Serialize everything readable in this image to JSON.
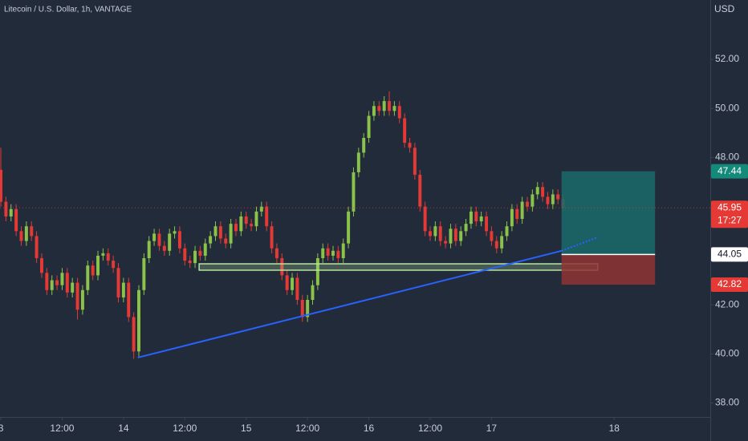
{
  "chart_data": {
    "type": "candlestick",
    "title": "Litecoin / U.S. Dollar, 1h, VANTAGE",
    "y_axis_label": "USD",
    "x": [
      0,
      1,
      2,
      3,
      4,
      5,
      6,
      7,
      8,
      9,
      10,
      11,
      12,
      13,
      14,
      15,
      16,
      17,
      18,
      19,
      20,
      21,
      22,
      23,
      24,
      25,
      26,
      27,
      28,
      29,
      30,
      31,
      32,
      33,
      34,
      35,
      36,
      37,
      38,
      39,
      40,
      41,
      42,
      43,
      44,
      45,
      46,
      47,
      48,
      49,
      50,
      51,
      52,
      53,
      54,
      55,
      56,
      57,
      58,
      59,
      60,
      61,
      62,
      63,
      64,
      65,
      66,
      67,
      68,
      69,
      70,
      71,
      72,
      73,
      74,
      75,
      76,
      77,
      78,
      79,
      80,
      81,
      82,
      83,
      84,
      85,
      86,
      87,
      88,
      89,
      90,
      91,
      92,
      93,
      94,
      95,
      96,
      97,
      98,
      99,
      100,
      101,
      102,
      103,
      104,
      105,
      106,
      107,
      108,
      109,
      110
    ],
    "open": [
      47.5,
      46.2,
      45.6,
      45.9,
      45.0,
      44.6,
      45.2,
      44.8,
      43.9,
      43.3,
      42.6,
      43.0,
      42.8,
      43.3,
      42.5,
      42.9,
      41.8,
      42.6,
      43.6,
      43.2,
      44.0,
      44.1,
      43.8,
      43.5,
      42.3,
      42.9,
      41.5,
      40.1,
      42.6,
      43.9,
      44.6,
      44.9,
      44.4,
      44.2,
      44.9,
      45.0,
      44.3,
      43.8,
      43.7,
      44.2,
      44.0,
      44.5,
      44.8,
      45.2,
      44.7,
      44.5,
      45.3,
      45.0,
      45.6,
      45.3,
      45.2,
      45.8,
      46.0,
      45.2,
      44.3,
      43.9,
      43.2,
      42.6,
      43.1,
      42.2,
      41.5,
      42.2,
      42.8,
      43.9,
      44.3,
      44.0,
      44.2,
      43.9,
      44.5,
      45.8,
      47.4,
      48.2,
      48.8,
      49.7,
      50.1,
      49.9,
      50.3,
      49.9,
      50.1,
      49.6,
      48.6,
      48.4,
      47.3,
      46.0,
      45.0,
      44.8,
      45.2,
      44.6,
      44.5,
      45.1,
      44.6,
      45.0,
      45.3,
      45.8,
      45.4,
      45.6,
      45.0,
      44.6,
      44.3,
      44.8,
      45.2,
      45.9,
      45.5,
      46.2,
      46.0,
      46.5,
      46.8,
      46.4,
      46.1,
      46.5,
      46.3
    ],
    "high": [
      48.4,
      46.4,
      46.1,
      46.1,
      45.2,
      45.4,
      45.4,
      45.0,
      44.1,
      43.5,
      43.2,
      43.2,
      43.5,
      43.5,
      43.1,
      43.1,
      42.8,
      43.8,
      43.8,
      44.2,
      44.3,
      44.3,
      44.0,
      43.7,
      43.1,
      43.1,
      41.7,
      42.8,
      44.1,
      44.8,
      45.1,
      45.1,
      44.6,
      45.1,
      45.2,
      45.2,
      44.5,
      44.0,
      44.4,
      44.4,
      44.7,
      45.0,
      45.4,
      45.4,
      44.9,
      45.5,
      45.5,
      45.8,
      45.8,
      45.5,
      46.0,
      46.2,
      46.2,
      45.4,
      44.5,
      44.1,
      43.4,
      43.3,
      43.3,
      42.4,
      42.4,
      43.0,
      44.1,
      44.5,
      44.5,
      44.4,
      44.4,
      44.7,
      46.0,
      47.6,
      48.4,
      49.0,
      49.9,
      50.3,
      50.3,
      50.5,
      50.7,
      50.3,
      50.3,
      49.8,
      48.8,
      48.6,
      47.5,
      46.2,
      45.2,
      45.4,
      45.4,
      44.8,
      45.3,
      45.3,
      45.2,
      45.5,
      46.0,
      46.0,
      45.8,
      45.8,
      45.2,
      44.8,
      45.0,
      45.4,
      46.1,
      46.1,
      46.4,
      46.4,
      46.7,
      47.0,
      47.0,
      46.6,
      46.7,
      46.7,
      46.5
    ],
    "low": [
      46.0,
      45.4,
      45.4,
      44.8,
      44.4,
      44.4,
      44.6,
      43.7,
      43.1,
      42.4,
      42.4,
      42.6,
      42.6,
      42.3,
      42.3,
      41.4,
      41.6,
      42.4,
      43.0,
      43.0,
      43.8,
      43.6,
      43.3,
      42.1,
      42.1,
      41.3,
      39.8,
      39.9,
      42.4,
      43.7,
      44.4,
      44.2,
      44.0,
      44.0,
      44.7,
      44.1,
      43.6,
      43.5,
      43.5,
      43.8,
      43.8,
      44.3,
      44.6,
      44.5,
      44.3,
      44.3,
      44.8,
      44.8,
      45.1,
      45.0,
      45.0,
      45.6,
      45.0,
      44.1,
      43.7,
      43.0,
      42.4,
      42.4,
      42.0,
      41.3,
      41.3,
      42.0,
      42.6,
      43.7,
      43.8,
      43.8,
      43.7,
      43.7,
      44.3,
      45.6,
      47.2,
      48.0,
      48.6,
      49.5,
      49.7,
      49.7,
      49.7,
      49.7,
      49.4,
      48.4,
      48.2,
      47.1,
      45.8,
      44.8,
      44.6,
      44.6,
      44.4,
      44.3,
      44.3,
      44.4,
      44.4,
      44.8,
      45.1,
      45.2,
      45.2,
      44.8,
      44.4,
      44.1,
      44.1,
      44.6,
      45.0,
      45.3,
      45.3,
      45.8,
      45.8,
      46.3,
      46.2,
      45.9,
      45.9,
      46.1,
      45.8
    ],
    "close": [
      46.2,
      45.6,
      45.9,
      45.0,
      44.6,
      45.2,
      44.8,
      43.9,
      43.3,
      42.6,
      43.0,
      42.8,
      43.3,
      42.5,
      42.9,
      41.8,
      42.6,
      43.6,
      43.2,
      44.0,
      44.1,
      43.8,
      43.5,
      42.3,
      42.9,
      41.5,
      40.1,
      42.6,
      43.9,
      44.6,
      44.9,
      44.4,
      44.2,
      44.9,
      45.0,
      44.3,
      43.8,
      43.7,
      44.2,
      44.0,
      44.5,
      44.8,
      45.2,
      44.7,
      44.5,
      45.3,
      45.0,
      45.6,
      45.3,
      45.2,
      45.8,
      46.0,
      45.2,
      44.3,
      43.9,
      43.2,
      42.6,
      43.1,
      42.2,
      41.5,
      42.2,
      42.8,
      43.9,
      44.3,
      44.0,
      44.2,
      43.9,
      44.5,
      45.8,
      47.4,
      48.2,
      48.8,
      49.7,
      50.1,
      49.9,
      50.3,
      49.9,
      50.1,
      49.6,
      48.6,
      48.4,
      47.3,
      46.0,
      45.0,
      44.8,
      45.2,
      44.6,
      44.5,
      45.1,
      44.6,
      45.0,
      45.3,
      45.8,
      45.4,
      45.6,
      45.0,
      44.6,
      44.3,
      44.8,
      45.2,
      45.9,
      45.5,
      46.2,
      46.0,
      46.5,
      46.8,
      46.4,
      46.1,
      46.5,
      46.3,
      45.95
    ],
    "up_color": "#8bc34a",
    "down_color": "#e53935",
    "xlim": [
      -0.16,
      138.8
    ],
    "ylim": [
      37.43,
      54.42
    ],
    "xticks": [
      {
        "value": 0,
        "label": "3"
      },
      {
        "value": 12,
        "label": "12:00"
      },
      {
        "value": 24,
        "label": "14"
      },
      {
        "value": 36,
        "label": "12:00"
      },
      {
        "value": 48,
        "label": "15"
      },
      {
        "value": 60,
        "label": "12:00"
      },
      {
        "value": 72,
        "label": "16"
      },
      {
        "value": 84,
        "label": "12:00"
      },
      {
        "value": 96,
        "label": "17"
      },
      {
        "value": 120,
        "label": "18"
      }
    ],
    "yticks": [
      {
        "value": 38,
        "label": "38.00"
      },
      {
        "value": 40,
        "label": "40.00"
      },
      {
        "value": 42,
        "label": "42.00"
      },
      {
        "value": 44,
        "label": "44.00"
      },
      {
        "value": 46,
        "label": "46.00"
      },
      {
        "value": 48,
        "label": "48.00"
      },
      {
        "value": 50,
        "label": "50.00"
      },
      {
        "value": 52,
        "label": "52.00"
      }
    ],
    "last_price": 45.95,
    "countdown": "17:27",
    "trendline": {
      "color": "#2962ff",
      "x": [
        26.8,
        109.7
      ],
      "y": [
        39.85,
        44.2
      ]
    },
    "trendline_extension": {
      "color": "#2962ff",
      "x": [
        109.7,
        116.8
      ],
      "y": [
        44.2,
        44.75
      ]
    },
    "support_zone": {
      "color": "#b7e4a0",
      "x": [
        38.8,
        116.8
      ],
      "y": [
        43.41,
        43.67
      ]
    },
    "position": {
      "x": [
        109.7,
        128
      ],
      "entry": 44.05,
      "target": 47.44,
      "stop": 42.82,
      "target_color": "#1a6b6b",
      "stop_color": "#8e3434"
    }
  }
}
